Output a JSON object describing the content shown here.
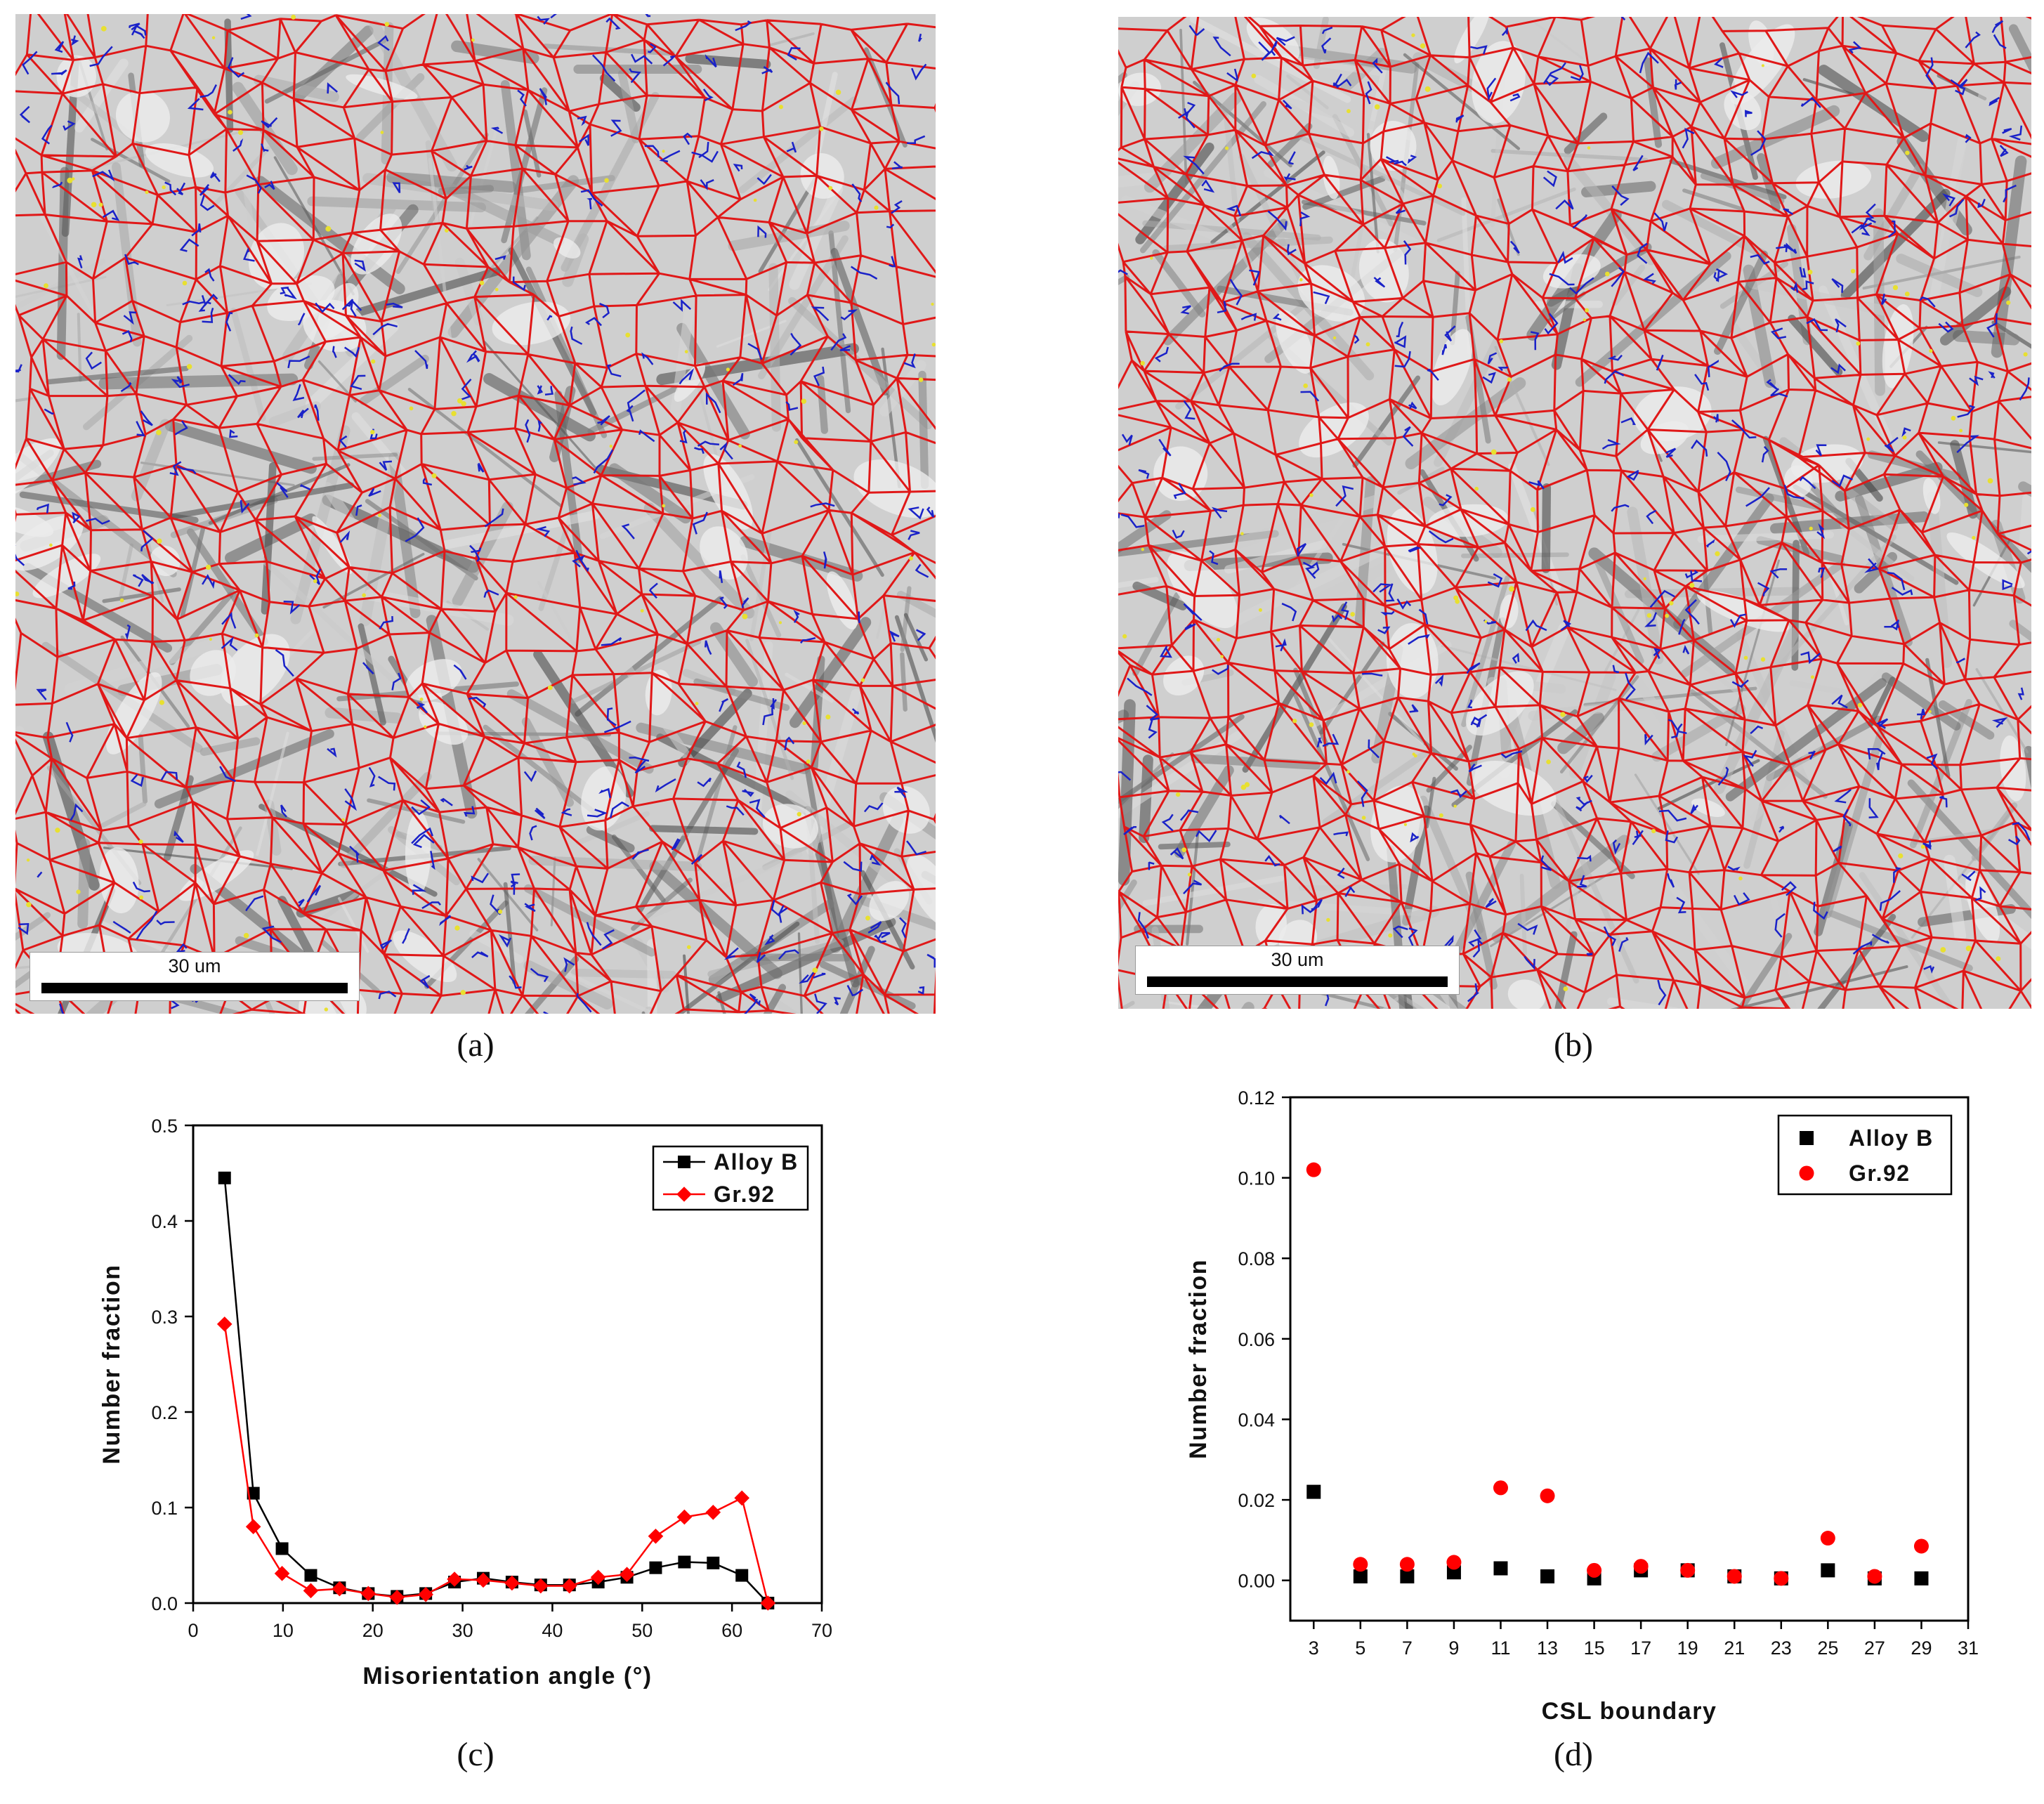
{
  "panels": {
    "a": {
      "caption": "(a)",
      "scale_label": "30 um"
    },
    "b": {
      "caption": "(b)",
      "scale_label": "30 um"
    },
    "c": {
      "caption": "(c)"
    },
    "d": {
      "caption": "(d)"
    }
  },
  "colors": {
    "high_angle_boundary": "#e01818",
    "low_angle_boundary": "#1a22c8",
    "special_boundary": "#e8e030",
    "alloy_b": "#000000",
    "gr92": "#ff0000"
  },
  "chart_data": [
    {
      "id": "c",
      "type": "line",
      "xlabel": "Misorientation angle (°)",
      "ylabel": "Number fraction",
      "xlim": [
        0,
        70
      ],
      "ylim": [
        0,
        0.5
      ],
      "xticks": [
        0,
        10,
        20,
        30,
        40,
        50,
        60,
        70
      ],
      "yticks": [
        "0.0",
        "0.1",
        "0.2",
        "0.3",
        "0.4",
        "0.5"
      ],
      "legend_position": "top-right",
      "series": [
        {
          "name": "Alloy B",
          "marker": "square",
          "color": "#000000",
          "x": [
            3.5,
            6.7,
            9.9,
            13.1,
            16.3,
            19.5,
            22.7,
            25.9,
            29.1,
            32.3,
            35.5,
            38.7,
            41.9,
            45.1,
            48.3,
            51.5,
            54.7,
            57.9,
            61.1,
            64.0
          ],
          "y": [
            0.445,
            0.115,
            0.057,
            0.029,
            0.016,
            0.01,
            0.007,
            0.01,
            0.022,
            0.026,
            0.022,
            0.019,
            0.019,
            0.022,
            0.027,
            0.037,
            0.043,
            0.042,
            0.029,
            0.0
          ]
        },
        {
          "name": "Gr.92",
          "marker": "diamond",
          "color": "#ff0000",
          "x": [
            3.5,
            6.7,
            9.9,
            13.1,
            16.3,
            19.5,
            22.7,
            25.9,
            29.1,
            32.3,
            35.5,
            38.7,
            41.9,
            45.1,
            48.3,
            51.5,
            54.7,
            57.9,
            61.1,
            64.0
          ],
          "y": [
            0.292,
            0.08,
            0.031,
            0.013,
            0.015,
            0.01,
            0.006,
            0.009,
            0.025,
            0.024,
            0.021,
            0.018,
            0.018,
            0.027,
            0.03,
            0.07,
            0.09,
            0.095,
            0.11,
            0.0
          ]
        }
      ]
    },
    {
      "id": "d",
      "type": "scatter",
      "xlabel": "CSL boundary",
      "ylabel": "Number fraction",
      "xlim": [
        2,
        31
      ],
      "ylim": [
        -0.01,
        0.12
      ],
      "xticks": [
        3,
        5,
        7,
        9,
        11,
        13,
        15,
        17,
        19,
        21,
        23,
        25,
        27,
        29,
        31
      ],
      "yticks": [
        "0.00",
        "0.02",
        "0.04",
        "0.06",
        "0.08",
        "0.10",
        "0.12"
      ],
      "legend_position": "top-right",
      "series": [
        {
          "name": "Alloy B",
          "marker": "square",
          "color": "#000000",
          "x": [
            3,
            5,
            7,
            9,
            11,
            13,
            15,
            17,
            19,
            21,
            23,
            25,
            27,
            29
          ],
          "y": [
            0.022,
            0.001,
            0.001,
            0.002,
            0.003,
            0.001,
            0.0005,
            0.0025,
            0.0025,
            0.001,
            0.0005,
            0.0025,
            0.0005,
            0.0005
          ]
        },
        {
          "name": "Gr.92",
          "marker": "circle",
          "color": "#ff0000",
          "x": [
            3,
            5,
            7,
            9,
            11,
            13,
            15,
            17,
            19,
            21,
            23,
            25,
            27,
            29
          ],
          "y": [
            0.102,
            0.004,
            0.004,
            0.0045,
            0.023,
            0.021,
            0.0025,
            0.0035,
            0.0025,
            0.001,
            0.0005,
            0.0105,
            0.001,
            0.0085
          ]
        }
      ]
    }
  ]
}
